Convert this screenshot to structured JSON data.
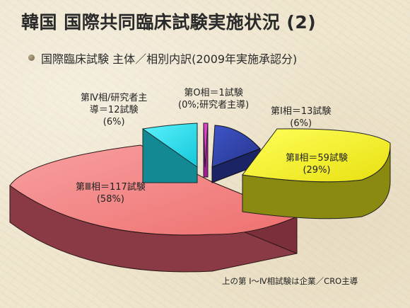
{
  "slide": {
    "title": "韓国 国際共同臨床試験実施状況 (2)",
    "subtitle": "国際臨床試験 主体／相別内訳(2009年実施承認分)",
    "note": "上の第 Ⅰ～Ⅳ相試験は企業／CRO主導"
  },
  "chart_data": {
    "type": "pie",
    "title": "",
    "slices": [
      {
        "label": "第O相＝1試験",
        "value": 1,
        "percent_text": "(0%;研究者主導)",
        "color": "#e040c8"
      },
      {
        "label": "第Ⅰ相＝13試験",
        "value": 13,
        "percent_text": "(6%)",
        "color": "#2e3f9f"
      },
      {
        "label": "第Ⅱ相＝59試験",
        "value": 59,
        "percent_text": "(29%)",
        "color": "#f6f21e"
      },
      {
        "label": "第Ⅲ相＝117試験",
        "value": 117,
        "percent_text": "(58%)",
        "color": "#f08080"
      },
      {
        "label": "第Ⅳ相/研究者主導＝12試験",
        "value": 12,
        "percent_text": "(6%)",
        "color": "#23d8e6"
      }
    ]
  }
}
